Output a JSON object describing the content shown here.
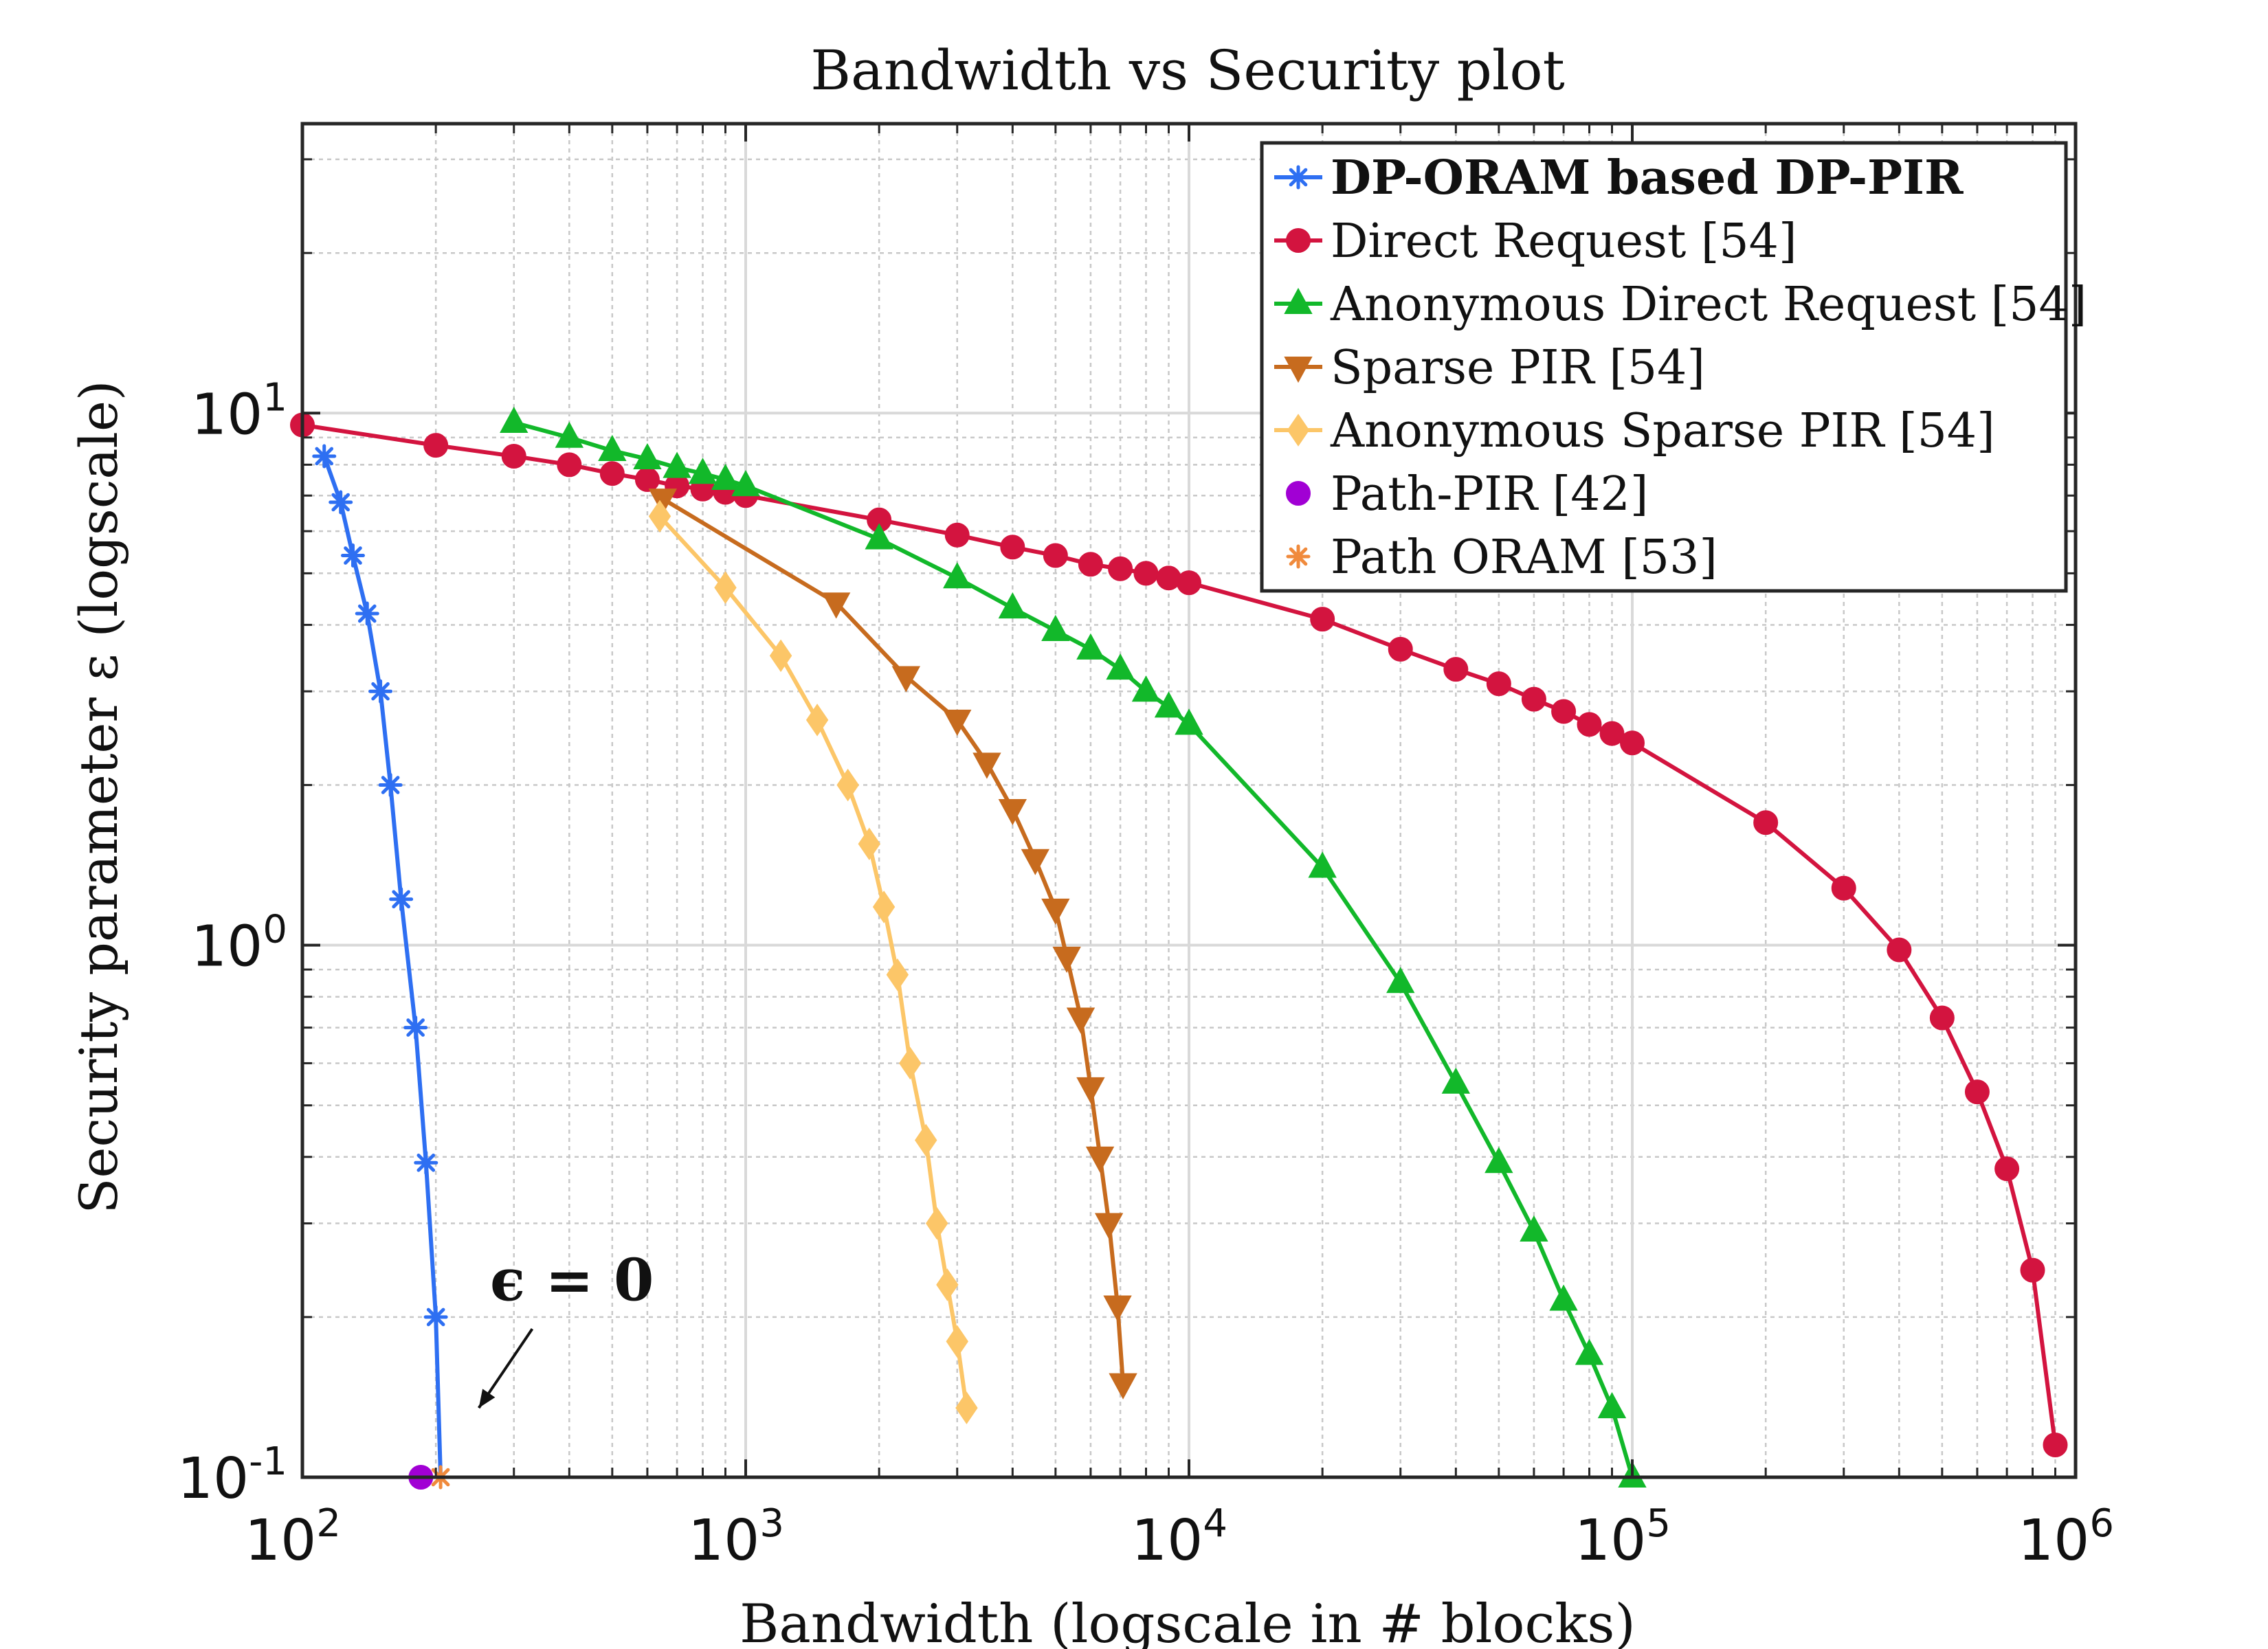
{
  "chart_data": {
    "type": "line",
    "title": "Bandwidth vs Security plot",
    "xlabel": "Bandwidth (logscale in # blocks)",
    "ylabel": "Security parameter ε (logscale)",
    "xscale": "log",
    "yscale": "log",
    "xlim": [
      100,
      1000000
    ],
    "ylim": [
      0.1,
      35
    ],
    "x_ticks": [
      {
        "value": 100,
        "base": "10",
        "exp": "2"
      },
      {
        "value": 1000,
        "base": "10",
        "exp": "3"
      },
      {
        "value": 10000,
        "base": "10",
        "exp": "4"
      },
      {
        "value": 100000,
        "base": "10",
        "exp": "5"
      },
      {
        "value": 1000000,
        "base": "10",
        "exp": "6"
      }
    ],
    "y_ticks": [
      {
        "value": 0.1,
        "base": "10",
        "exp": "-1"
      },
      {
        "value": 1,
        "base": "10",
        "exp": "0"
      },
      {
        "value": 10,
        "base": "10",
        "exp": "1"
      }
    ],
    "grid": true,
    "legend_position": "top-right",
    "annotation": {
      "text": "ϵ = 0",
      "arrow_from": [
        250,
        0.135
      ],
      "arrow_to": [
        330,
        0.19
      ],
      "text_at": [
        265,
        0.215
      ]
    },
    "series": [
      {
        "name": "DP-ORAM based DP-PIR",
        "bold": true,
        "color": "#2e6ff2",
        "marker": "asterisk",
        "x": [
          112,
          122,
          130,
          140,
          150,
          158,
          167,
          180,
          190,
          200,
          205
        ],
        "y": [
          8.3,
          6.8,
          5.4,
          4.2,
          3.0,
          2.0,
          1.22,
          0.7,
          0.39,
          0.2,
          0.1
        ],
        "markers_on": [
          true,
          true,
          true,
          true,
          true,
          true,
          true,
          true,
          true,
          true,
          false
        ]
      },
      {
        "name": "Direct Request [54]",
        "bold": false,
        "color": "#d3143f",
        "marker": "circle",
        "x": [
          100,
          200,
          300,
          400,
          500,
          600,
          700,
          800,
          900,
          1000,
          2000,
          3000,
          4000,
          5000,
          6000,
          7000,
          8000,
          9000,
          10000,
          20000,
          30000,
          40000,
          50000,
          60000,
          70000,
          80000,
          90000,
          100000,
          200000,
          300000,
          400000,
          500000,
          600000,
          700000,
          800000,
          900000
        ],
        "y": [
          9.5,
          8.7,
          8.3,
          8.0,
          7.7,
          7.5,
          7.3,
          7.2,
          7.1,
          7.0,
          6.3,
          5.9,
          5.6,
          5.4,
          5.2,
          5.1,
          5.0,
          4.9,
          4.8,
          4.1,
          3.6,
          3.3,
          3.1,
          2.9,
          2.75,
          2.6,
          2.5,
          2.4,
          1.7,
          1.28,
          0.98,
          0.73,
          0.53,
          0.38,
          0.245,
          0.115
        ]
      },
      {
        "name": "Anonymous Direct Request [54]",
        "bold": false,
        "color": "#12b82a",
        "marker": "triangle-up",
        "x": [
          300,
          400,
          500,
          600,
          700,
          800,
          900,
          1000,
          2000,
          3000,
          4000,
          5000,
          6000,
          7000,
          8000,
          9000,
          10000,
          20000,
          30000,
          40000,
          50000,
          60000,
          70000,
          80000,
          90000,
          100000
        ],
        "y": [
          9.6,
          9.0,
          8.5,
          8.2,
          7.9,
          7.7,
          7.5,
          7.3,
          5.8,
          4.9,
          4.3,
          3.9,
          3.6,
          3.3,
          3.0,
          2.8,
          2.6,
          1.4,
          0.85,
          0.55,
          0.39,
          0.29,
          0.215,
          0.17,
          0.135,
          0.1
        ]
      },
      {
        "name": "Sparse PIR [54]",
        "bold": false,
        "color": "#c76b1e",
        "marker": "triangle-down",
        "x": [
          650,
          1600,
          2300,
          3000,
          3500,
          4000,
          4500,
          5000,
          5300,
          5700,
          6000,
          6300,
          6600,
          6900,
          7100
        ],
        "y": [
          6.9,
          4.4,
          3.2,
          2.65,
          2.2,
          1.8,
          1.45,
          1.17,
          0.95,
          0.73,
          0.54,
          0.4,
          0.3,
          0.21,
          0.15
        ]
      },
      {
        "name": "Anonymous Sparse PIR [54]",
        "bold": false,
        "color": "#fcc668",
        "marker": "diamond",
        "x": [
          640,
          900,
          1200,
          1450,
          1700,
          1900,
          2050,
          2200,
          2350,
          2550,
          2700,
          2850,
          3000,
          3150
        ],
        "y": [
          6.4,
          4.7,
          3.5,
          2.65,
          2.0,
          1.55,
          1.18,
          0.88,
          0.6,
          0.43,
          0.3,
          0.23,
          0.18,
          0.135
        ]
      },
      {
        "name": "Path-PIR [42]",
        "bold": false,
        "color": "#a100d4",
        "marker": "circle",
        "x": [
          185
        ],
        "y": [
          0.1
        ],
        "line": false
      },
      {
        "name": "Path ORAM [53]",
        "bold": false,
        "color": "#f08a3c",
        "marker": "asterisk",
        "x": [
          205
        ],
        "y": [
          0.1
        ],
        "line": false
      }
    ]
  }
}
